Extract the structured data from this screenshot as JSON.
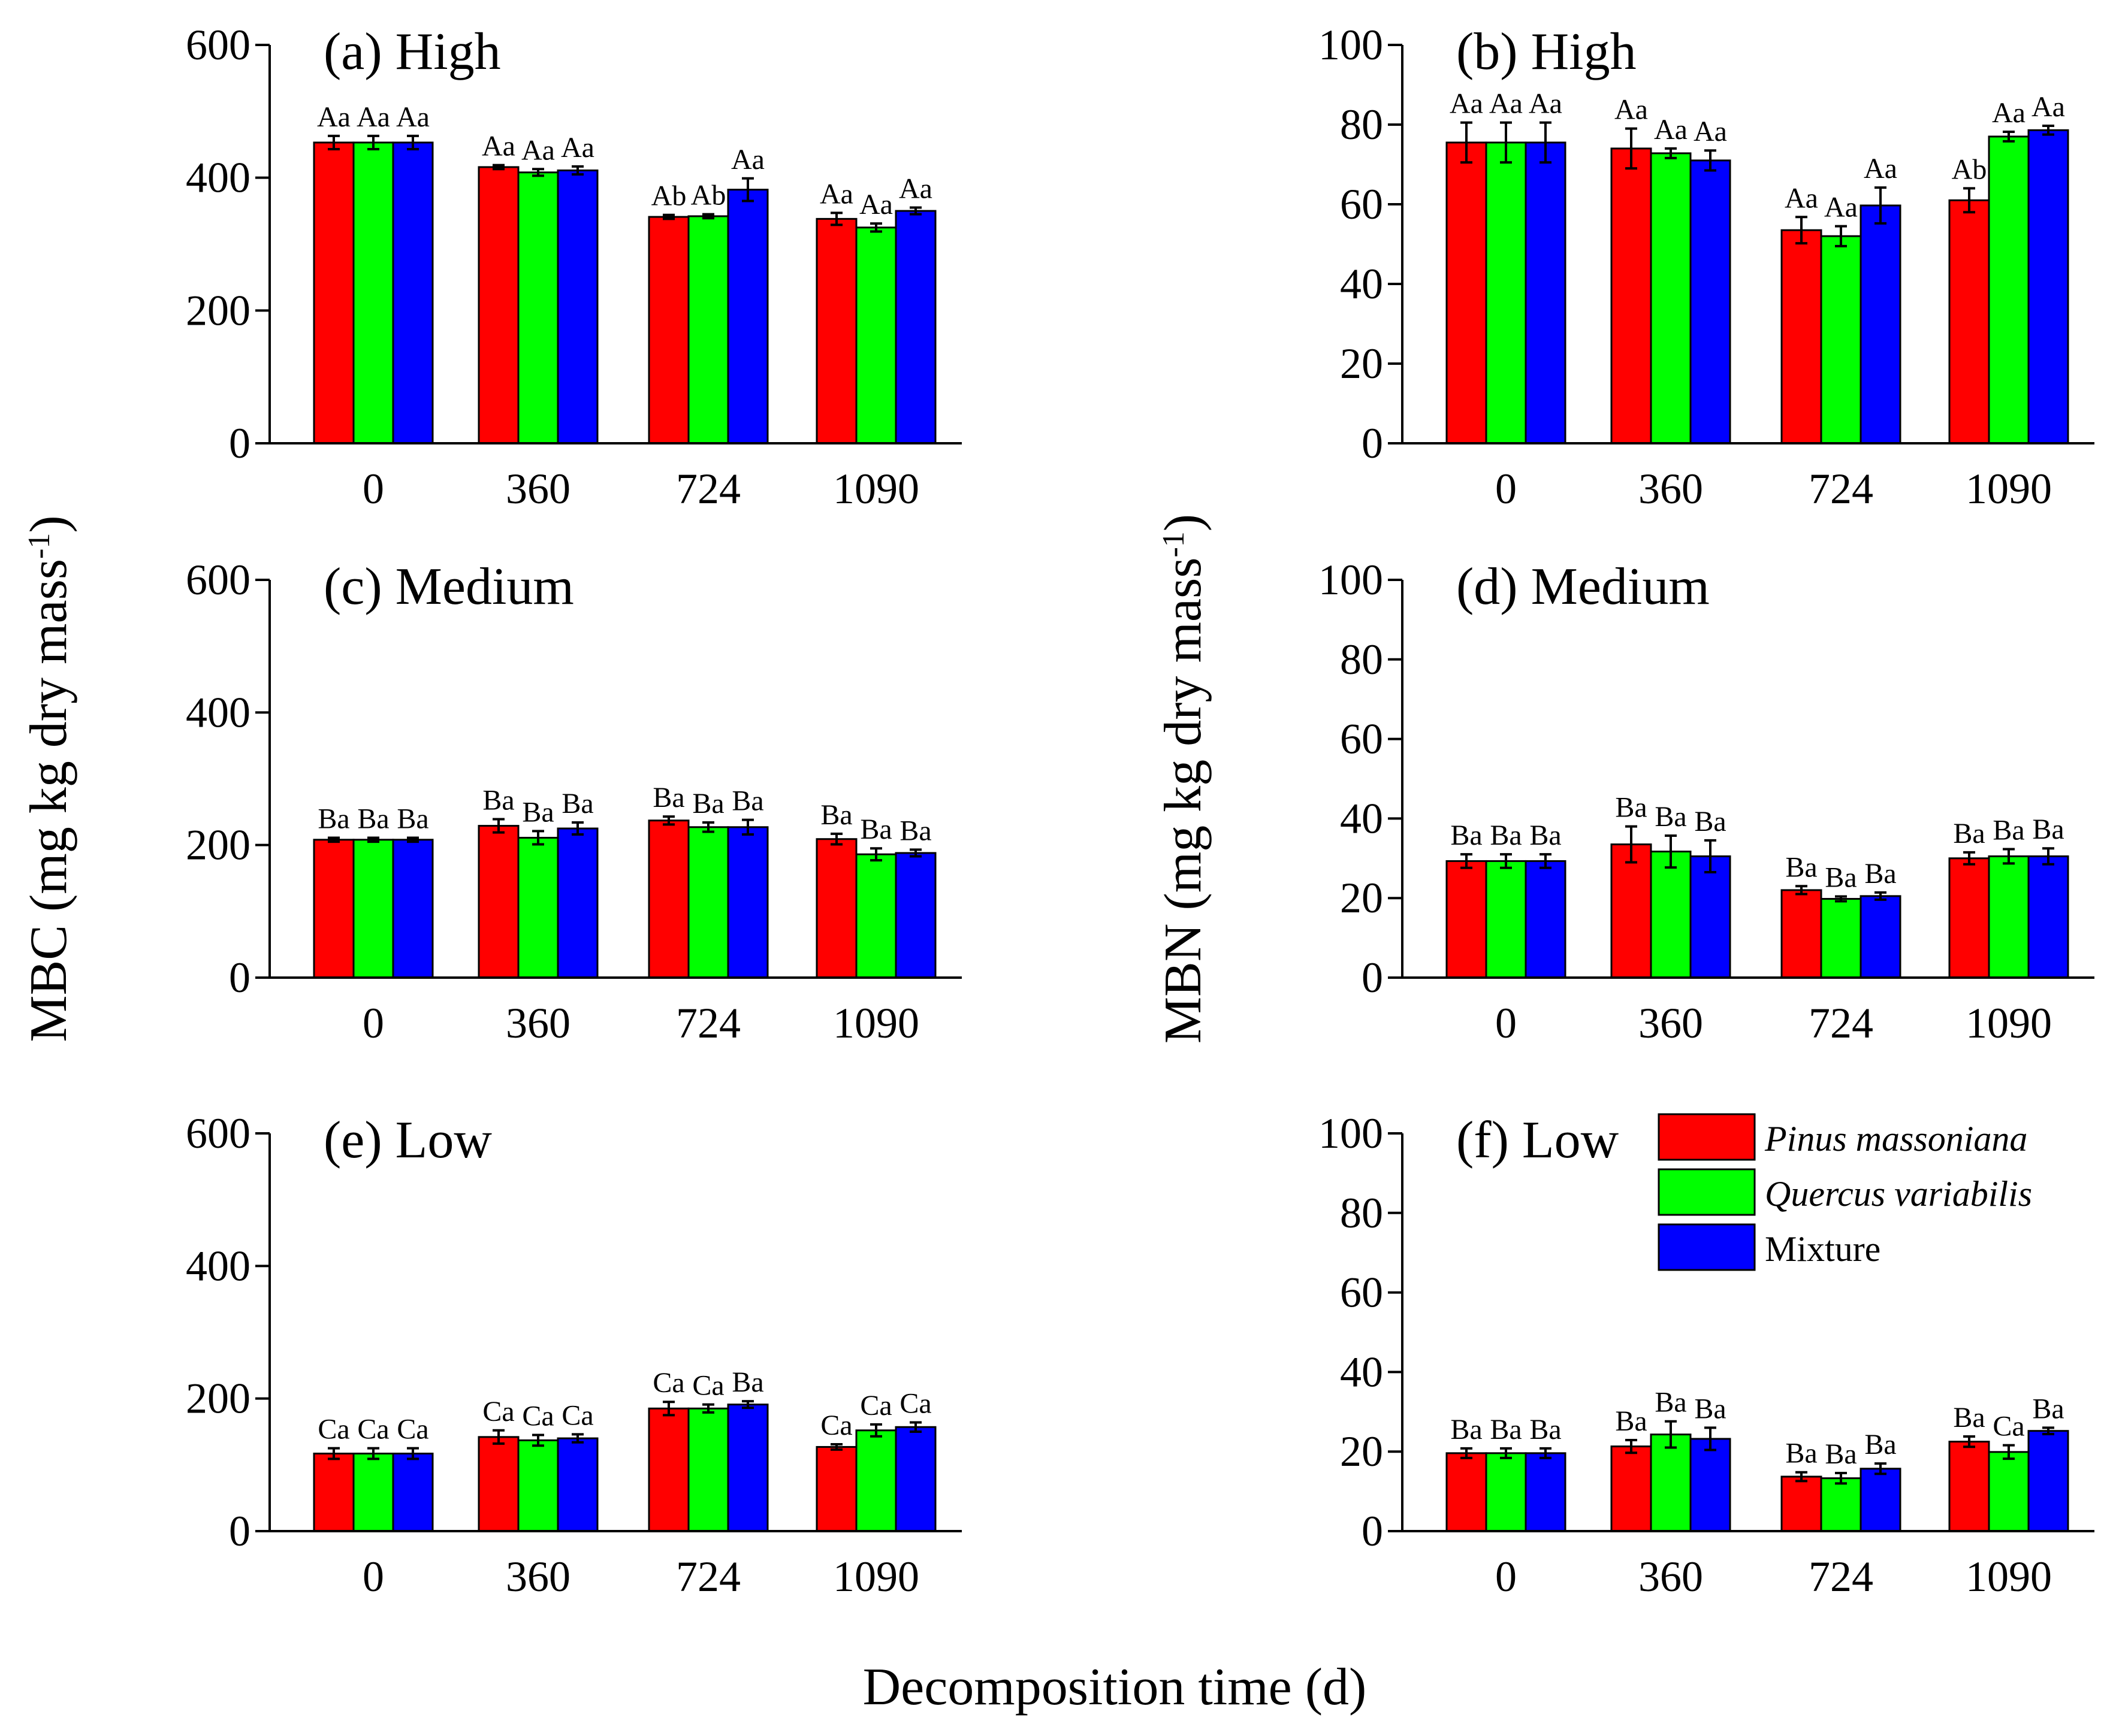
{
  "chart_data": {
    "type": "bar",
    "xlabel": "Decomposition time (d)",
    "categories": [
      "0",
      "360",
      "724",
      "1090"
    ],
    "series_names": [
      "Pinus massoniana",
      "Quercus variabilis",
      "Mixture"
    ],
    "colors": {
      "Pinus massoniana": "#FF0000",
      "Quercus variabilis": "#00FF00",
      "Mixture": "#0000FF"
    },
    "ylabels": {
      "MBC": {
        "main": "MBC (mg kg dry mass",
        "sup": "-1",
        "close": ")"
      },
      "MBN": {
        "main": "MBN (mg kg dry mass",
        "sup": "-1",
        "close": ")"
      }
    },
    "legend": {
      "position": "panel-f-top-right",
      "entries": [
        {
          "label": "Pinus massoniana",
          "italic": true
        },
        {
          "label": "Quercus variabilis",
          "italic": true
        },
        {
          "label": "Mixture",
          "italic": false
        }
      ]
    },
    "panels": [
      {
        "id": "a",
        "title": "(a) High",
        "metric": "MBC",
        "ylim": [
          0,
          600
        ],
        "yticks": [
          0,
          200,
          400,
          600
        ],
        "values": [
          [
            453,
            453,
            453
          ],
          [
            416,
            408,
            411
          ],
          [
            341,
            342,
            382
          ],
          [
            338,
            325,
            350
          ]
        ],
        "errors": [
          [
            10,
            10,
            10
          ],
          [
            3,
            5,
            6
          ],
          [
            3,
            3,
            17
          ],
          [
            9,
            6,
            5
          ]
        ],
        "labels": [
          [
            "Aa",
            "Aa",
            "Aa"
          ],
          [
            "Aa",
            "Aa",
            "Aa"
          ],
          [
            "Ab",
            "Ab",
            "Aa"
          ],
          [
            "Aa",
            "Aa",
            "Aa"
          ]
        ]
      },
      {
        "id": "b",
        "title": "(b) High",
        "metric": "MBN",
        "ylim": [
          0,
          100
        ],
        "yticks": [
          0,
          20,
          40,
          60,
          80,
          100
        ],
        "values": [
          [
            75.5,
            75.5,
            75.5
          ],
          [
            74,
            72.8,
            71
          ],
          [
            53.5,
            52,
            59.7
          ],
          [
            61,
            77,
            78.6
          ]
        ],
        "errors": [
          [
            5,
            5,
            5
          ],
          [
            5,
            1.2,
            2.5
          ],
          [
            3.3,
            2.5,
            4.5
          ],
          [
            3,
            1.2,
            1.1
          ]
        ],
        "labels": [
          [
            "Aa",
            "Aa",
            "Aa"
          ],
          [
            "Aa",
            "Aa",
            "Aa"
          ],
          [
            "Aa",
            "Aa",
            "Aa"
          ],
          [
            "Ab",
            "Aa",
            "Aa"
          ]
        ]
      },
      {
        "id": "c",
        "title": "(c) Medium",
        "metric": "MBC",
        "ylim": [
          0,
          600
        ],
        "yticks": [
          0,
          200,
          400,
          600
        ],
        "values": [
          [
            208,
            208,
            208
          ],
          [
            229,
            211,
            225
          ],
          [
            237,
            227,
            227
          ],
          [
            209,
            186,
            188
          ]
        ],
        "errors": [
          [
            3,
            3,
            3
          ],
          [
            10,
            10,
            9
          ],
          [
            6,
            7,
            11
          ],
          [
            8,
            9,
            5
          ]
        ],
        "labels": [
          [
            "Ba",
            "Ba",
            "Ba"
          ],
          [
            "Ba",
            "Ba",
            "Ba"
          ],
          [
            "Ba",
            "Ba",
            "Ba"
          ],
          [
            "Ba",
            "Ba",
            "Ba"
          ]
        ]
      },
      {
        "id": "d",
        "title": "(d) Medium",
        "metric": "MBN",
        "ylim": [
          0,
          100
        ],
        "yticks": [
          0,
          20,
          40,
          60,
          80,
          100
        ],
        "values": [
          [
            29.3,
            29.3,
            29.3
          ],
          [
            33.5,
            31.7,
            30.5
          ],
          [
            22,
            19.8,
            20.5
          ],
          [
            30,
            30.5,
            30.5
          ]
        ],
        "errors": [
          [
            1.7,
            1.7,
            1.7
          ],
          [
            4.5,
            4,
            4
          ],
          [
            1,
            0.6,
            0.9
          ],
          [
            1.5,
            1.8,
            2
          ]
        ],
        "labels": [
          [
            "Ba",
            "Ba",
            "Ba"
          ],
          [
            "Ba",
            "Ba",
            "Ba"
          ],
          [
            "Ba",
            "Ba",
            "Ba"
          ],
          [
            "Ba",
            "Ba",
            "Ba"
          ]
        ]
      },
      {
        "id": "e",
        "title": "(e) Low",
        "metric": "MBC",
        "ylim": [
          0,
          600
        ],
        "yticks": [
          0,
          200,
          400,
          600
        ],
        "values": [
          [
            117,
            117,
            117
          ],
          [
            142,
            137,
            140
          ],
          [
            185,
            185,
            191
          ],
          [
            127,
            152,
            157
          ]
        ],
        "errors": [
          [
            8,
            8,
            8
          ],
          [
            10,
            8,
            6
          ],
          [
            10,
            6,
            5
          ],
          [
            4,
            9,
            7
          ]
        ],
        "labels": [
          [
            "Ca",
            "Ca",
            "Ca"
          ],
          [
            "Ca",
            "Ca",
            "Ca"
          ],
          [
            "Ca",
            "Ca",
            "Ba"
          ],
          [
            "Ca",
            "Ca",
            "Ca"
          ]
        ]
      },
      {
        "id": "f",
        "title": "(f) Low",
        "metric": "MBN",
        "ylim": [
          0,
          100
        ],
        "yticks": [
          0,
          20,
          40,
          60,
          80,
          100
        ],
        "values": [
          [
            19.6,
            19.6,
            19.6
          ],
          [
            21.3,
            24.3,
            23.2
          ],
          [
            13.7,
            13.3,
            15.7
          ],
          [
            22.5,
            19.9,
            25.2
          ]
        ],
        "errors": [
          [
            1.2,
            1.2,
            1.2
          ],
          [
            1.6,
            3.3,
            2.8
          ],
          [
            1.1,
            1.3,
            1.3
          ],
          [
            1.3,
            1.7,
            0.8
          ]
        ],
        "labels": [
          [
            "Ba",
            "Ba",
            "Ba"
          ],
          [
            "Ba",
            "Ba",
            "Ba"
          ],
          [
            "Ba",
            "Ba",
            "Ba"
          ],
          [
            "Ba",
            "Ca",
            "Ba"
          ]
        ]
      }
    ]
  }
}
